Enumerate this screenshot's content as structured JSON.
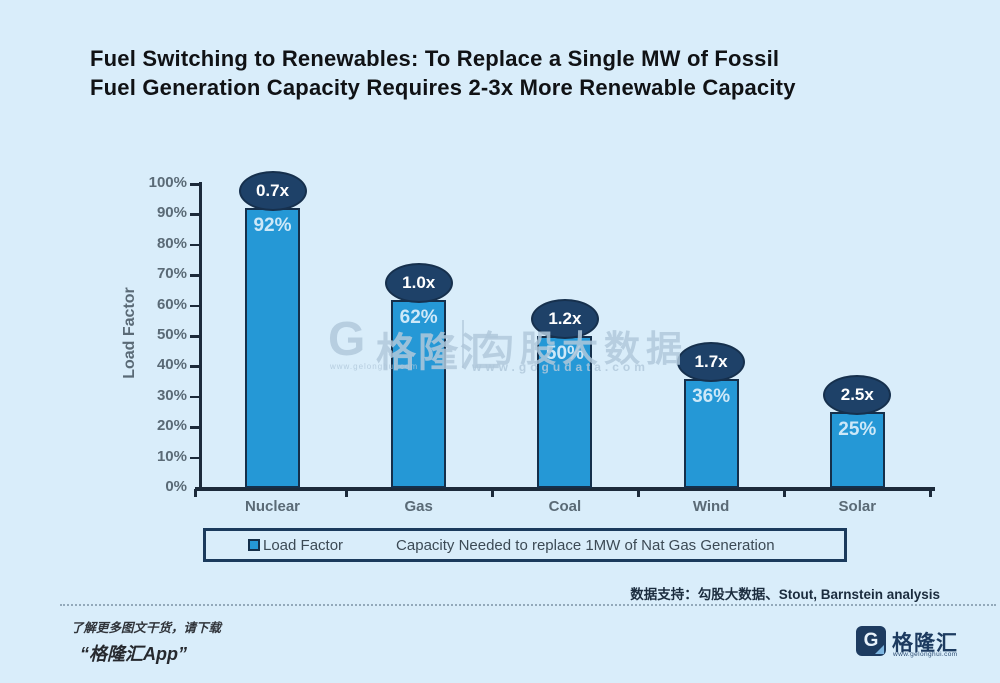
{
  "title": {
    "line1": "Fuel Switching to Renewables: To Replace a Single MW of Fossil",
    "line2": "Fuel Generation Capacity Requires 2-3x More Renewable Capacity"
  },
  "chart_data": {
    "type": "bar",
    "categories": [
      "Nuclear",
      "Gas",
      "Coal",
      "Wind",
      "Solar"
    ],
    "series": [
      {
        "name": "Load Factor",
        "values": [
          92,
          62,
          50,
          36,
          25
        ],
        "labels": [
          "92%",
          "62%",
          "50%",
          "36%",
          "25%"
        ]
      },
      {
        "name": "Capacity Needed to replace 1MW of Nat Gas Generation",
        "values": [
          0.7,
          1.0,
          1.2,
          1.7,
          2.5
        ],
        "labels": [
          "0.7x",
          "1.0x",
          "1.2x",
          "1.7x",
          "2.5x"
        ]
      }
    ],
    "ylabel": "Load Factor",
    "ylim": [
      0,
      100
    ],
    "y_ticks": [
      "0%",
      "10%",
      "20%",
      "30%",
      "40%",
      "50%",
      "60%",
      "70%",
      "80%",
      "90%",
      "100%"
    ],
    "grid": false,
    "legend_position": "bottom",
    "colors": {
      "bar_fill": "#2598d6",
      "bar_border": "#152f4a",
      "bubble_fill": "#1e4168",
      "background": "#d9edfa"
    }
  },
  "legend": {
    "swatch_label": "Load Factor",
    "note": "Capacity Needed to replace 1MW of Nat Gas Generation"
  },
  "watermark": {
    "logo_letter": "G",
    "logo_text": "格隆汇",
    "site": "www.gelonghui.com",
    "brand2": "勾股大数据",
    "site2": "www.gogudata.com"
  },
  "footer": {
    "source": "数据支持：勾股大数据、Stout, Barnstein analysis",
    "promo_line1": "了解更多图文干货，请下载",
    "promo_line2": "“格隆汇App”",
    "brand_letter": "G",
    "brand": "格隆汇",
    "brand_url": "www.gelonghui.com"
  }
}
